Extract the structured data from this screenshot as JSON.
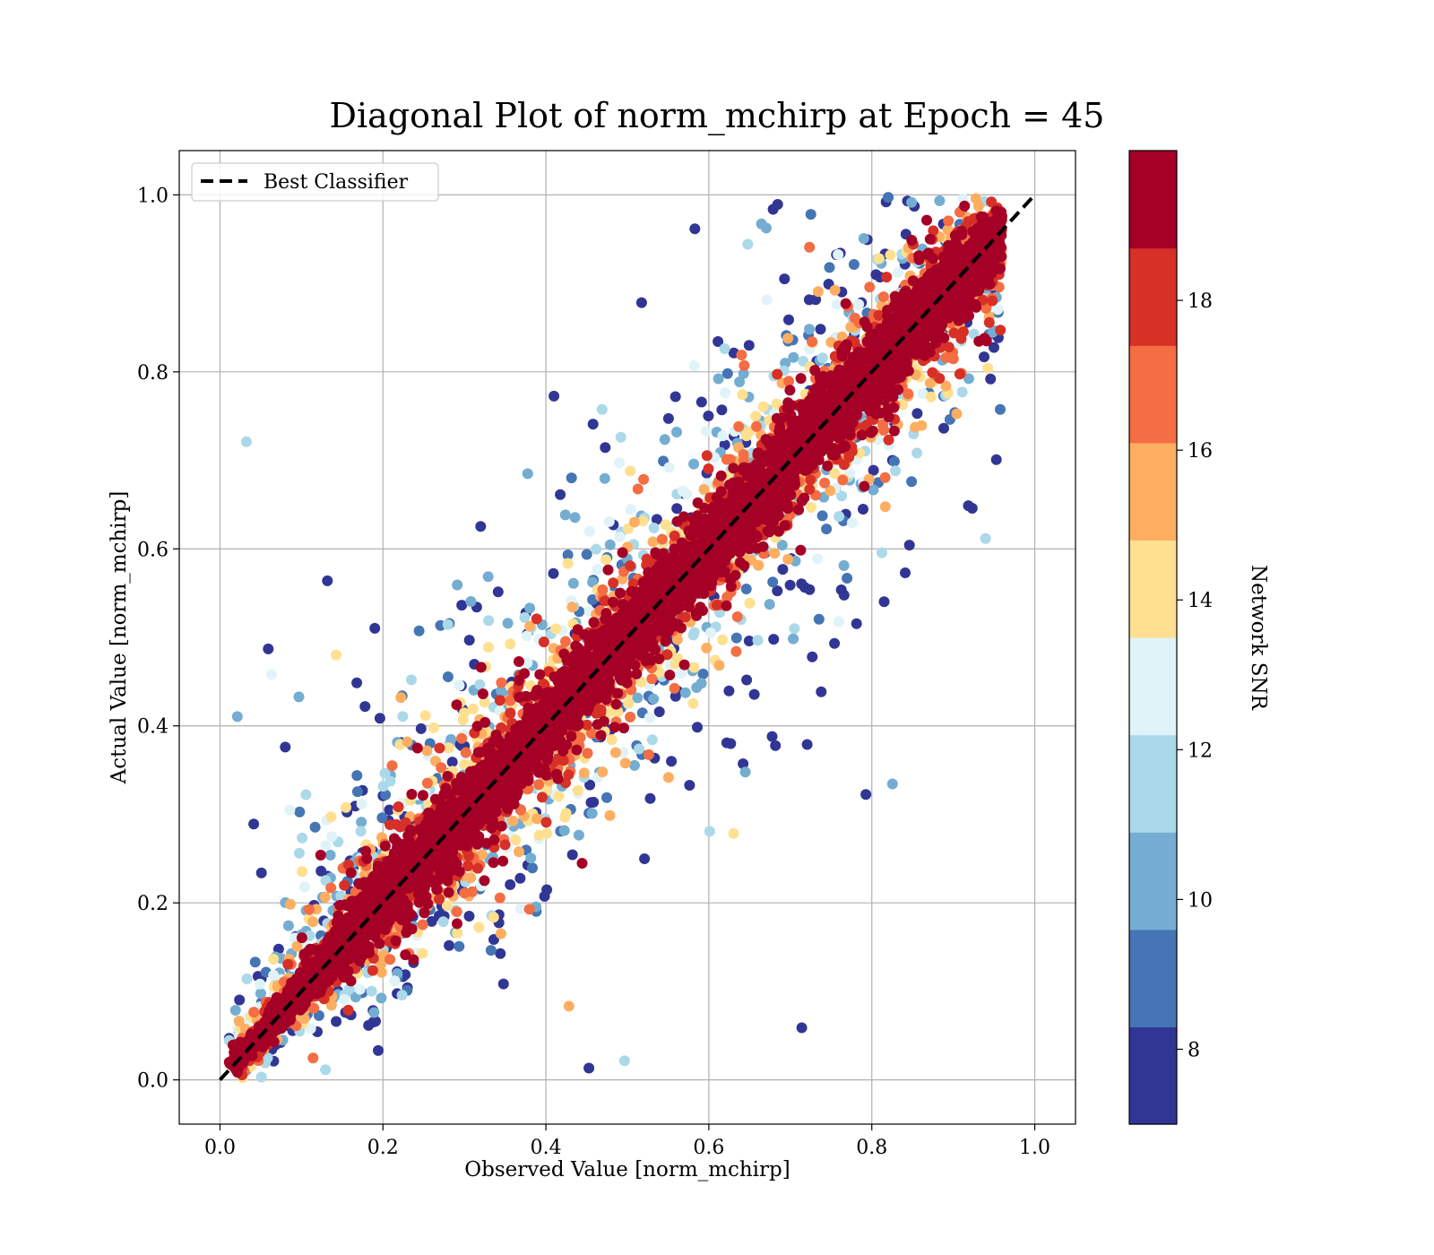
{
  "chart_data": {
    "type": "scatter",
    "title": "Diagonal Plot of norm_mchirp at Epoch = 45",
    "xlabel": "Observed Value [norm_mchirp]",
    "ylabel": "Actual Value [norm_mchirp]",
    "xlim": [
      -0.05,
      1.05
    ],
    "ylim": [
      -0.05,
      1.05
    ],
    "x_ticks": [
      "0.0",
      "0.2",
      "0.4",
      "0.6",
      "0.8",
      "1.0"
    ],
    "y_ticks": [
      "0.0",
      "0.2",
      "0.4",
      "0.6",
      "0.8",
      "1.0"
    ],
    "grid": true,
    "legend": {
      "placement": "top-left",
      "entries": [
        "Best Classifier"
      ]
    },
    "reference_line": {
      "name": "Best Classifier",
      "style": "dashed",
      "color": "#000000",
      "x": [
        0,
        1
      ],
      "y": [
        0,
        1
      ]
    },
    "colorbar": {
      "label": "Network SNR",
      "range": [
        7,
        20
      ],
      "boundaries": [
        7,
        8.3,
        9.6,
        10.9,
        12.2,
        13.5,
        14.8,
        16.1,
        17.4,
        18.7,
        20
      ],
      "colors": [
        "#313695",
        "#4575b4",
        "#74add1",
        "#abd9e9",
        "#e0f3f8",
        "#fee090",
        "#fdae61",
        "#f46d43",
        "#d73027",
        "#a50026"
      ],
      "ticks": [
        "8",
        "10",
        "12",
        "14",
        "16",
        "18"
      ]
    },
    "point_summary": {
      "description": "dense cloud around the diagonal; high SNR points tightly on the diagonal, low SNR points widely scattered",
      "x_range": [
        0.0,
        0.95
      ],
      "y_range": [
        0.0,
        1.0
      ]
    }
  }
}
